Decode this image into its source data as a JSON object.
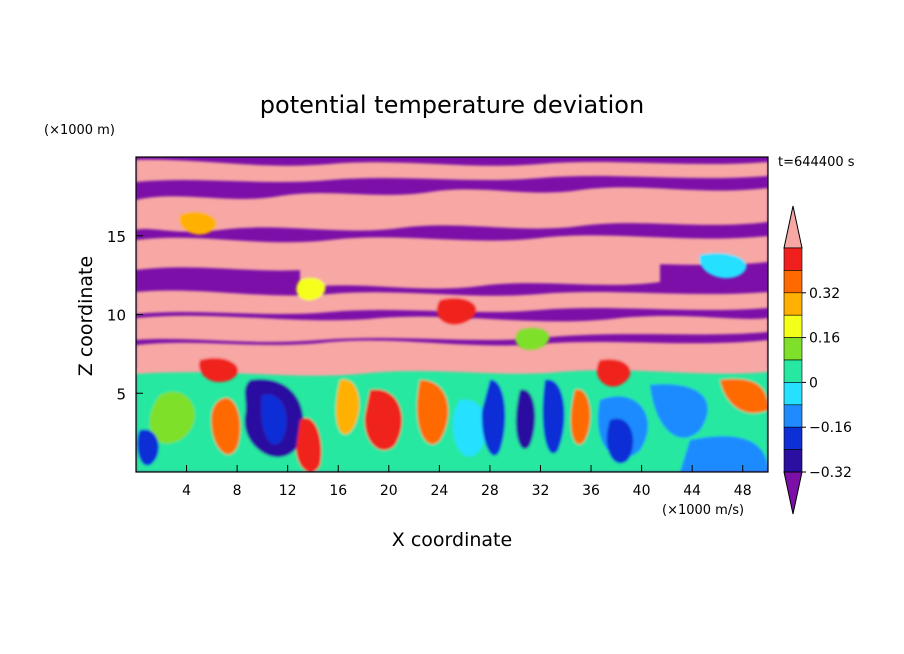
{
  "chart_data": {
    "type": "heatmap",
    "title": "potential temperature deviation",
    "xlabel": "X coordinate",
    "ylabel": "Z coordinate",
    "x_unit": "(×1000 m/s)",
    "y_unit": "(×1000 m)",
    "time_label": "t=644400 s",
    "xlim": [
      0,
      50
    ],
    "ylim": [
      0,
      20
    ],
    "x_ticks": [
      4,
      8,
      12,
      16,
      20,
      24,
      28,
      32,
      36,
      40,
      44,
      48
    ],
    "y_ticks": [
      5,
      10,
      15
    ],
    "colorbar": {
      "labeled_levels": [
        0.32,
        0.16,
        0,
        -0.16,
        -0.32
      ],
      "level_labels": [
        "0.32",
        "0.16",
        "0",
        "−0.16",
        "−0.32"
      ],
      "extend": "both",
      "colors": [
        "#7b0fa8",
        "#2a0fa0",
        "#0d2fd6",
        "#1f8bff",
        "#26e0ff",
        "#26e8a0",
        "#7fe02a",
        "#f4ff1a",
        "#ffb000",
        "#ff6a00",
        "#f0201f",
        "#f7a7a4"
      ]
    }
  }
}
